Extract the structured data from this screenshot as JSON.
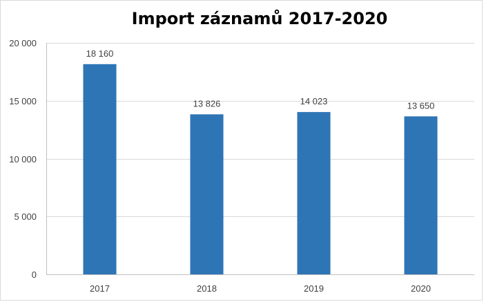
{
  "chart_data": {
    "type": "bar",
    "title": "Import záznamů 2017-2020",
    "xlabel": "",
    "ylabel": "",
    "categories": [
      "2017",
      "2018",
      "2019",
      "2020"
    ],
    "values": [
      18160,
      13826,
      14023,
      13650
    ],
    "value_labels": [
      "18 160",
      "13 826",
      "14 023",
      "13 650"
    ],
    "ylim": [
      0,
      20000
    ],
    "yticks": [
      0,
      5000,
      10000,
      15000,
      20000
    ],
    "ytick_labels": [
      "0",
      "5 000",
      "10 000",
      "15 000",
      "20 000"
    ],
    "grid": true,
    "legend": "none",
    "colors": {
      "bar": "#2e75b6",
      "grid": "#d9d9d9",
      "axis": "#bfbfbf",
      "text": "#404040"
    }
  }
}
